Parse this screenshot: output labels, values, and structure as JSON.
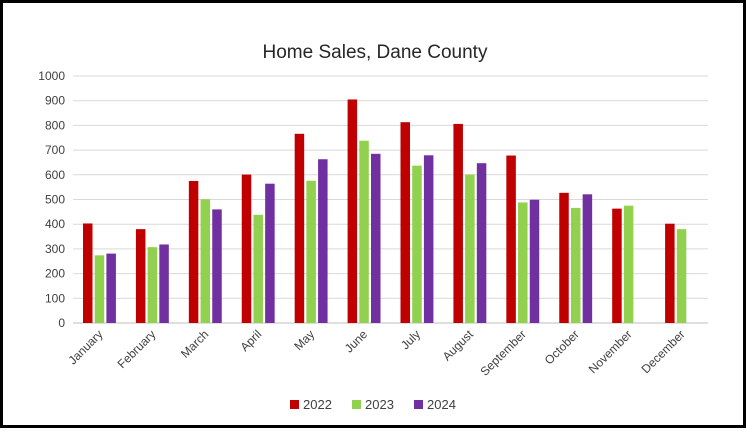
{
  "chart_data": {
    "type": "bar",
    "title": "Home Sales, Dane County",
    "xlabel": "",
    "ylabel": "",
    "ylim": [
      0,
      1000
    ],
    "yticks": [
      0,
      100,
      200,
      300,
      400,
      500,
      600,
      700,
      800,
      900,
      1000
    ],
    "grid": true,
    "legend_position": "bottom",
    "categories": [
      "January",
      "February",
      "March",
      "April",
      "May",
      "June",
      "July",
      "August",
      "September",
      "October",
      "November",
      "December"
    ],
    "series": [
      {
        "name": "2022",
        "color": "#C00000",
        "values": [
          403,
          380,
          575,
          601,
          766,
          905,
          813,
          806,
          678,
          527,
          463,
          402
        ]
      },
      {
        "name": "2023",
        "color": "#92D050",
        "values": [
          274,
          307,
          501,
          438,
          576,
          738,
          637,
          601,
          488,
          466,
          475,
          380
        ]
      },
      {
        "name": "2024",
        "color": "#7030A0",
        "values": [
          281,
          318,
          460,
          564,
          663,
          685,
          679,
          647,
          499,
          521,
          null,
          null
        ]
      }
    ]
  }
}
